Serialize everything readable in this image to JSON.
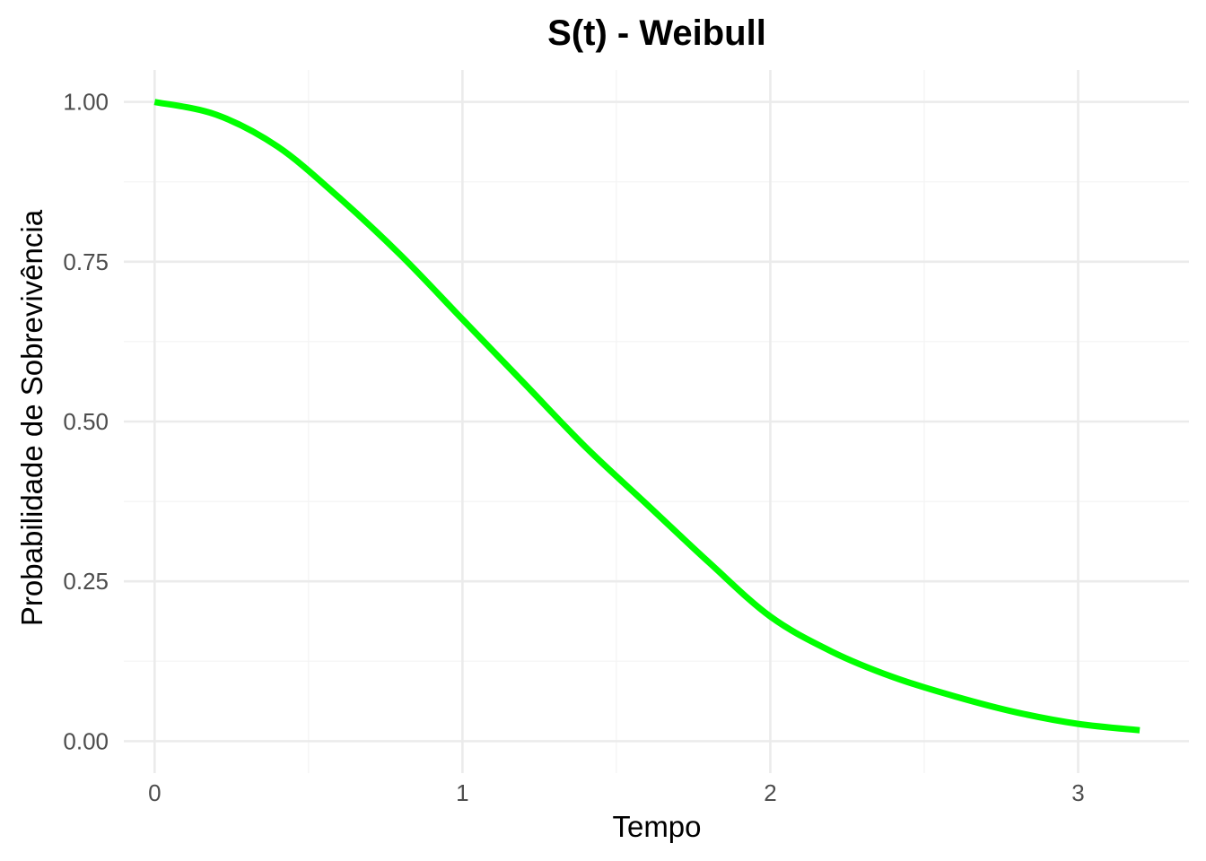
{
  "chart_data": {
    "type": "line",
    "title": "S(t) - Weibull",
    "xlabel": "Tempo",
    "ylabel": "Probabilidade de Sobrevivência",
    "xlim": [
      -0.1,
      3.36
    ],
    "ylim": [
      -0.05,
      1.05
    ],
    "x_ticks": [
      0,
      1,
      2,
      3
    ],
    "x_tick_labels": [
      "0",
      "1",
      "2",
      "3"
    ],
    "y_ticks": [
      0,
      0.25,
      0.5,
      0.75,
      1
    ],
    "y_tick_labels": [
      "0.00",
      "0.25",
      "0.50",
      "0.75",
      "1.00"
    ],
    "x_minor_ticks": [
      0.5,
      1.5,
      2.5
    ],
    "y_minor_ticks": [
      0.125,
      0.375,
      0.625,
      0.875
    ],
    "grid": true,
    "legend": "none",
    "line_color": "#00ff00",
    "series": [
      {
        "x": [
          0,
          0.2,
          0.4,
          0.6,
          0.8,
          1.0,
          1.2,
          1.4,
          1.6,
          1.8,
          2.0,
          2.2,
          2.4,
          2.6,
          2.8,
          3.0,
          3.2
        ],
        "values": [
          1.0,
          0.98,
          0.93,
          0.85,
          0.76,
          0.66,
          0.56,
          0.46,
          0.37,
          0.28,
          0.195,
          0.14,
          0.1,
          0.07,
          0.045,
          0.027,
          0.017
        ]
      }
    ]
  }
}
